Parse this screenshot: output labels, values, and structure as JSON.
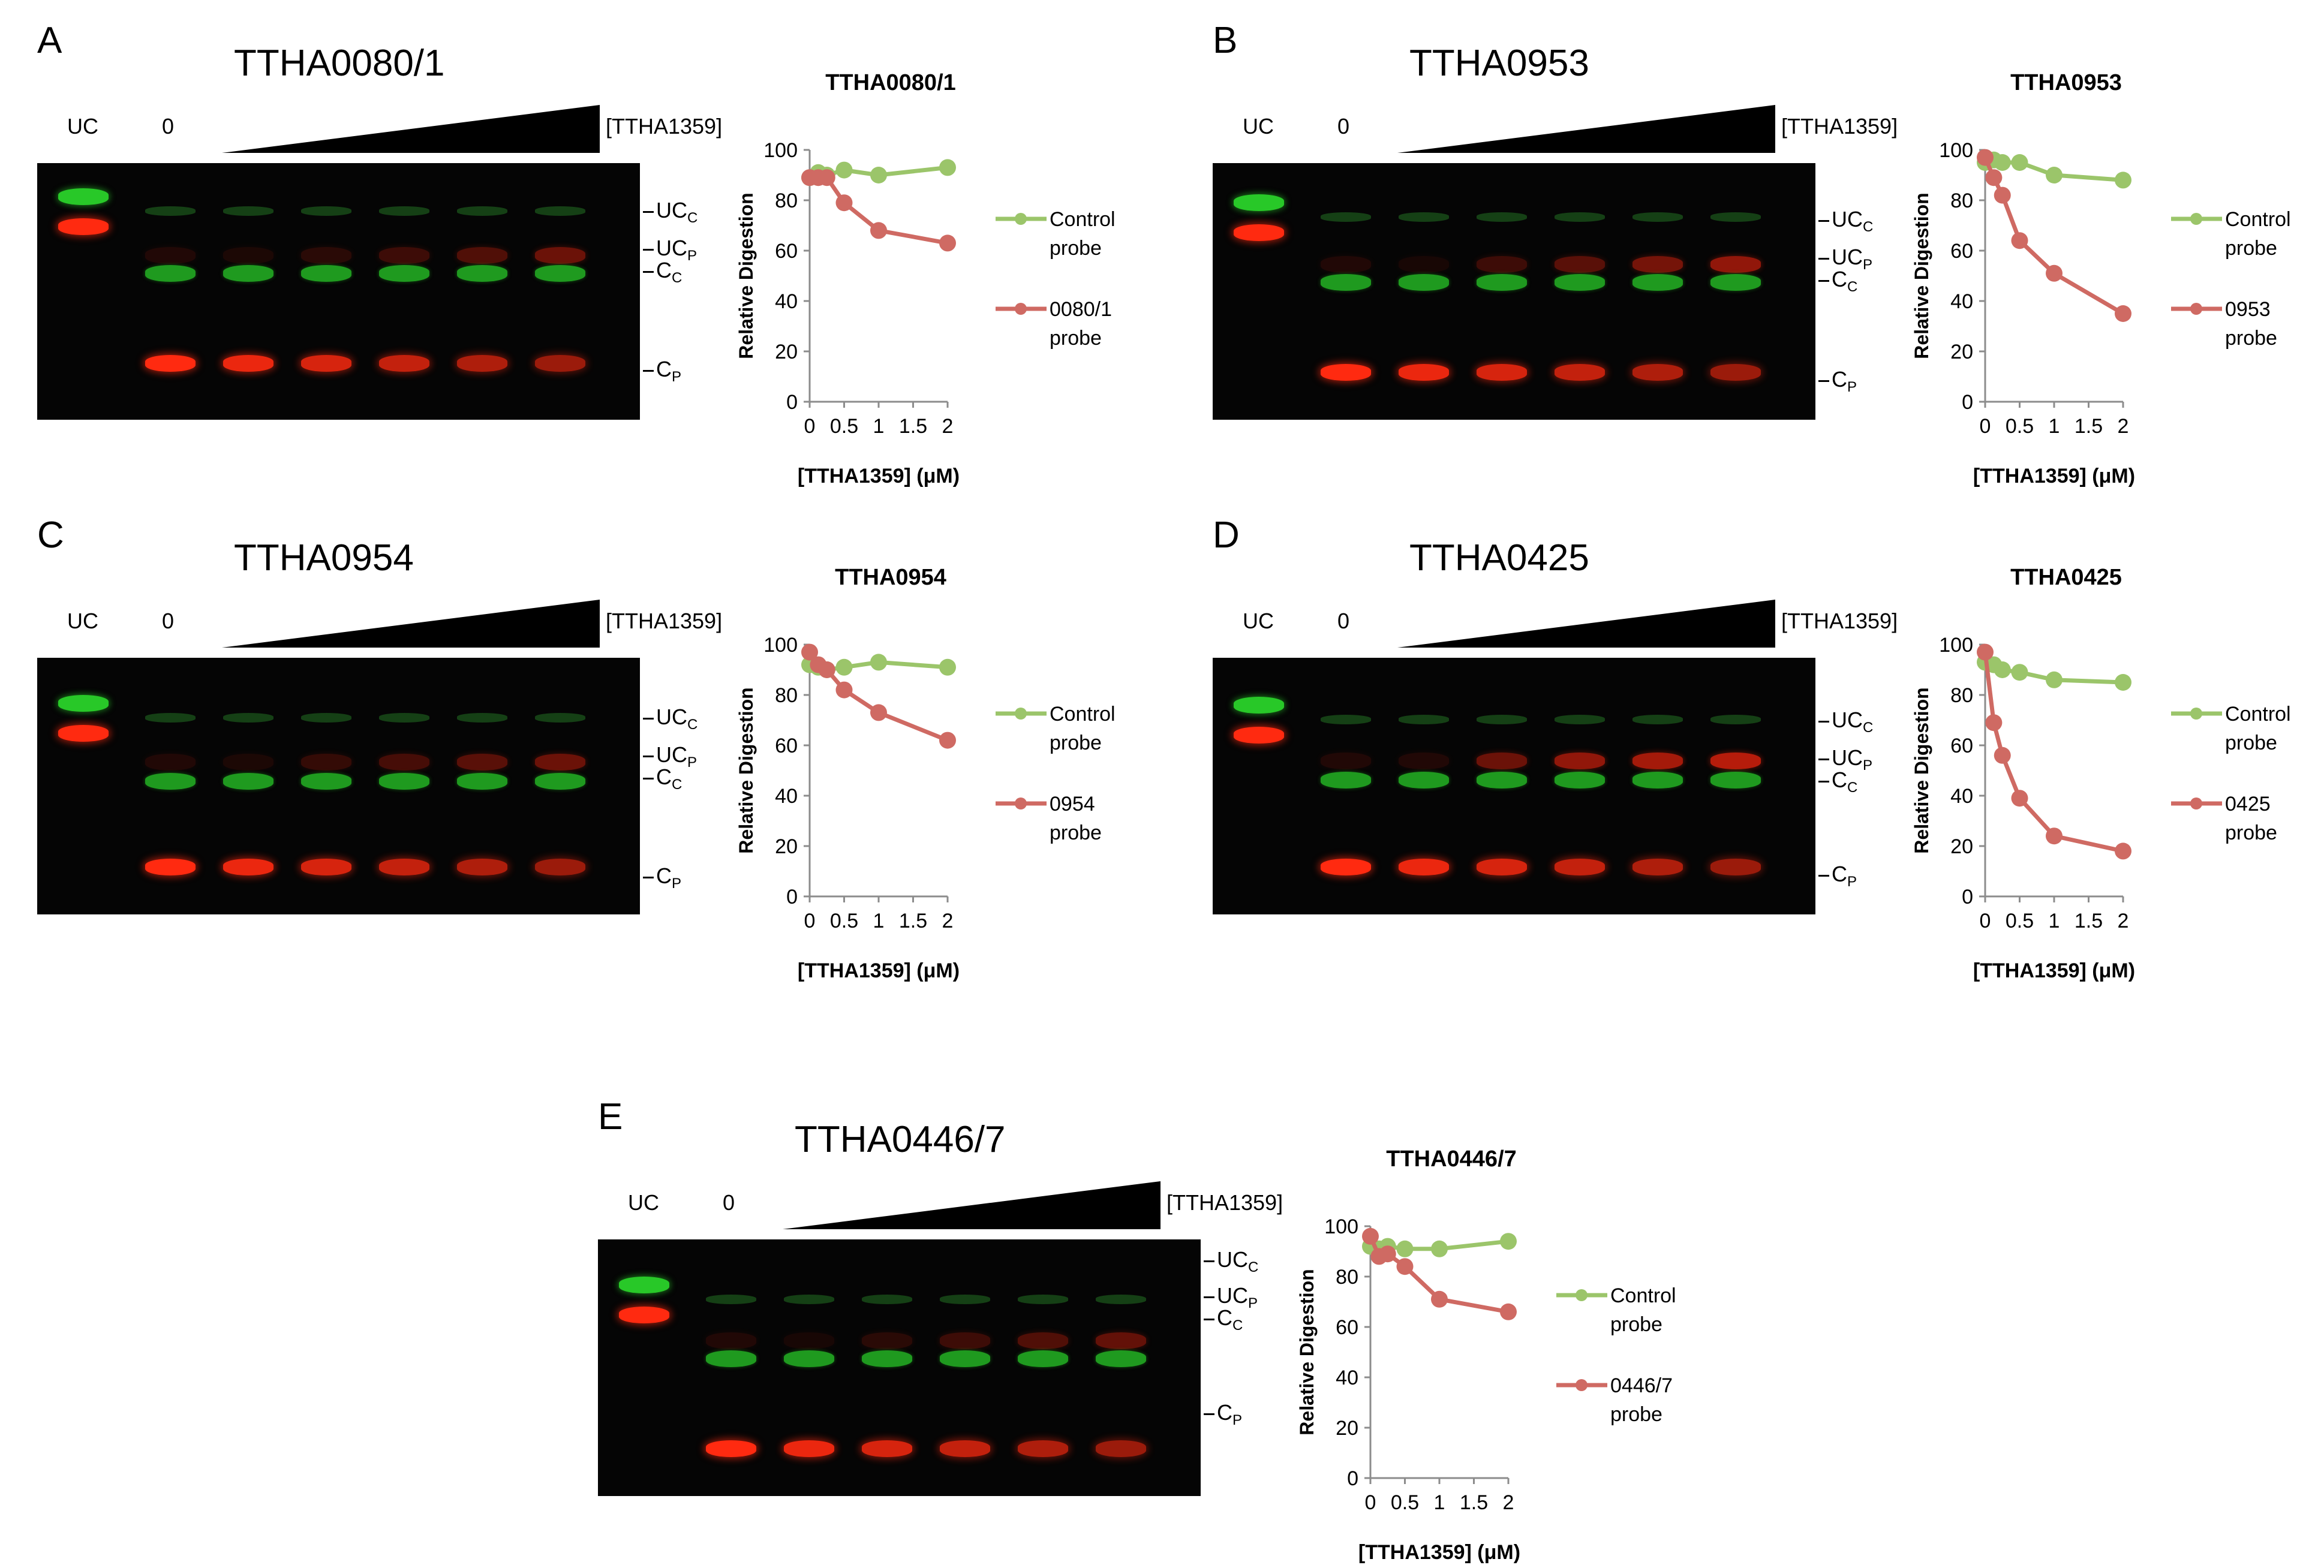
{
  "figure": {
    "wedge_label": "[TTHA1359]",
    "lane_uc_label": "UC",
    "lane_zero_label": "0",
    "band_labels": [
      {
        "base": "UC",
        "sub": "C"
      },
      {
        "base": "UC",
        "sub": "P"
      },
      {
        "base": "C",
        "sub": "C"
      },
      {
        "base": "C",
        "sub": "P"
      }
    ]
  },
  "colors": {
    "control_series": "#9bc56a",
    "probe_series": "#cf6a63",
    "gel_background": "#050505",
    "gel_green": "#28c828",
    "gel_red": "#ff2a10"
  },
  "panels": [
    {
      "letter": "A",
      "gel_title": "TTHA0080/1"
    },
    {
      "letter": "B",
      "gel_title": "TTHA0953"
    },
    {
      "letter": "C",
      "gel_title": "TTHA0954"
    },
    {
      "letter": "D",
      "gel_title": "TTHA0425"
    },
    {
      "letter": "E",
      "gel_title": "TTHA0446/7"
    }
  ],
  "chart_data": [
    {
      "type": "line",
      "title": "TTHA0080/1",
      "xlabel": "[TTHA1359] (μM)",
      "ylabel": "Relative Digestion",
      "xlim": [
        0,
        2
      ],
      "ylim": [
        0,
        100
      ],
      "xticks": [
        "0",
        "0.5",
        "1",
        "1.5",
        "2"
      ],
      "yticks": [
        "0",
        "20",
        "40",
        "60",
        "80",
        "100"
      ],
      "grid": false,
      "legend": "right",
      "series": [
        {
          "name": "Control probe",
          "legend_lines": [
            "Control",
            "probe"
          ],
          "color": "#9bc56a",
          "x": [
            0,
            0.125,
            0.25,
            0.5,
            1,
            2
          ],
          "y": [
            89,
            91,
            90,
            92,
            90,
            93
          ]
        },
        {
          "name": "0080/1 probe",
          "legend_lines": [
            "0080/1",
            "probe"
          ],
          "color": "#cf6a63",
          "x": [
            0,
            0.125,
            0.25,
            0.5,
            1,
            2
          ],
          "y": [
            89,
            89,
            89,
            79,
            68,
            63
          ]
        }
      ]
    },
    {
      "type": "line",
      "title": "TTHA0953",
      "xlabel": "[TTHA1359] (μM)",
      "ylabel": "Relative Digestion",
      "xlim": [
        0,
        2
      ],
      "ylim": [
        0,
        100
      ],
      "xticks": [
        "0",
        "0.5",
        "1",
        "1.5",
        "2"
      ],
      "yticks": [
        "0",
        "20",
        "40",
        "60",
        "80",
        "100"
      ],
      "grid": false,
      "legend": "right",
      "series": [
        {
          "name": "Control probe",
          "legend_lines": [
            "Control",
            "probe"
          ],
          "color": "#9bc56a",
          "x": [
            0,
            0.125,
            0.25,
            0.5,
            1,
            2
          ],
          "y": [
            95,
            96,
            95,
            95,
            90,
            88
          ]
        },
        {
          "name": "0953 probe",
          "legend_lines": [
            "0953",
            "probe"
          ],
          "color": "#cf6a63",
          "x": [
            0,
            0.125,
            0.25,
            0.5,
            1,
            2
          ],
          "y": [
            97,
            89,
            82,
            64,
            51,
            35
          ]
        }
      ]
    },
    {
      "type": "line",
      "title": "TTHA0954",
      "xlabel": "[TTHA1359] (μM)",
      "ylabel": "Relative Digestion",
      "xlim": [
        0,
        2
      ],
      "ylim": [
        0,
        100
      ],
      "xticks": [
        "0",
        "0.5",
        "1",
        "1.5",
        "2"
      ],
      "yticks": [
        "0",
        "20",
        "40",
        "60",
        "80",
        "100"
      ],
      "grid": false,
      "legend": "right",
      "series": [
        {
          "name": "Control probe",
          "legend_lines": [
            "Control",
            "probe"
          ],
          "color": "#9bc56a",
          "x": [
            0,
            0.125,
            0.25,
            0.5,
            1,
            2
          ],
          "y": [
            92,
            91,
            90,
            91,
            93,
            91
          ]
        },
        {
          "name": "0954 probe",
          "legend_lines": [
            "0954",
            "probe"
          ],
          "color": "#cf6a63",
          "x": [
            0,
            0.125,
            0.25,
            0.5,
            1,
            2
          ],
          "y": [
            97,
            92,
            90,
            82,
            73,
            62
          ]
        }
      ]
    },
    {
      "type": "line",
      "title": "TTHA0425",
      "xlabel": "[TTHA1359] (μM)",
      "ylabel": "Relative Digestion",
      "xlim": [
        0,
        2
      ],
      "ylim": [
        0,
        100
      ],
      "xticks": [
        "0",
        "0.5",
        "1",
        "1.5",
        "2"
      ],
      "yticks": [
        "0",
        "20",
        "40",
        "60",
        "80",
        "100"
      ],
      "grid": false,
      "legend": "right",
      "series": [
        {
          "name": "Control probe",
          "legend_lines": [
            "Control",
            "probe"
          ],
          "color": "#9bc56a",
          "x": [
            0,
            0.125,
            0.25,
            0.5,
            1,
            2
          ],
          "y": [
            93,
            92,
            90,
            89,
            86,
            85
          ]
        },
        {
          "name": "0425 probe",
          "legend_lines": [
            "0425",
            "probe"
          ],
          "color": "#cf6a63",
          "x": [
            0,
            0.125,
            0.25,
            0.5,
            1,
            2
          ],
          "y": [
            97,
            69,
            56,
            39,
            24,
            18
          ]
        }
      ]
    },
    {
      "type": "line",
      "title": "TTHA0446/7",
      "xlabel": "[TTHA1359] (μM)",
      "ylabel": "Relative Digestion",
      "xlim": [
        0,
        2
      ],
      "ylim": [
        0,
        100
      ],
      "xticks": [
        "0",
        "0.5",
        "1",
        "1.5",
        "2"
      ],
      "yticks": [
        "0",
        "20",
        "40",
        "60",
        "80",
        "100"
      ],
      "grid": false,
      "legend": "right",
      "series": [
        {
          "name": "Control probe",
          "legend_lines": [
            "Control",
            "probe"
          ],
          "color": "#9bc56a",
          "x": [
            0,
            0.125,
            0.25,
            0.5,
            1,
            2
          ],
          "y": [
            92,
            91,
            92,
            91,
            91,
            94
          ]
        },
        {
          "name": "0446/7 probe",
          "legend_lines": [
            "0446/7",
            "probe"
          ],
          "color": "#cf6a63",
          "x": [
            0,
            0.125,
            0.25,
            0.5,
            1,
            2
          ],
          "y": [
            96,
            88,
            89,
            84,
            71,
            66
          ]
        }
      ]
    }
  ]
}
